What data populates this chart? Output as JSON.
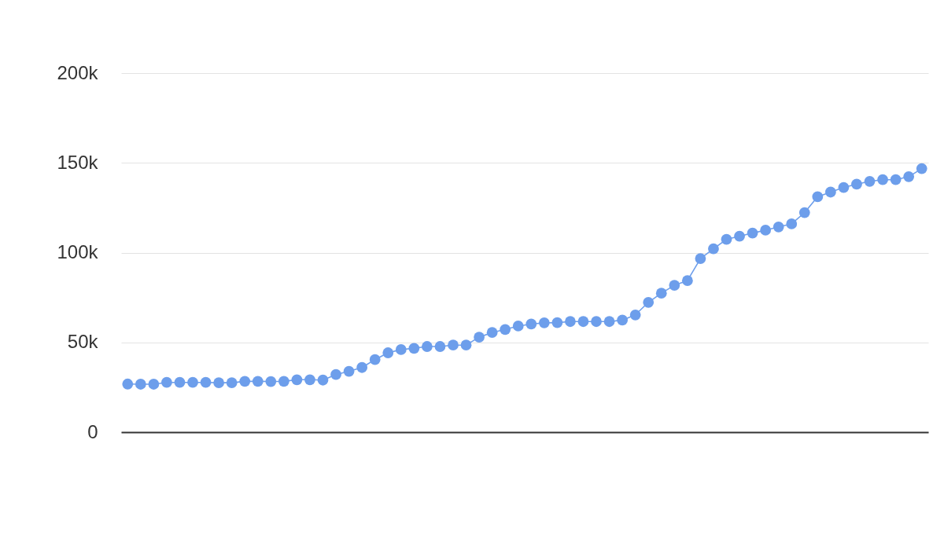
{
  "chart_data": {
    "type": "line",
    "categories": [
      null,
      null,
      null,
      null,
      null,
      null,
      null,
      null,
      null,
      null,
      null,
      null,
      null,
      null,
      null,
      null,
      null,
      null,
      null,
      null,
      null,
      null,
      null,
      null,
      null,
      null,
      null,
      null,
      null,
      null,
      null,
      null,
      null,
      null,
      null,
      null,
      null,
      null,
      null,
      null,
      null,
      null,
      null,
      null,
      null,
      null,
      null,
      null,
      null,
      null,
      null,
      null,
      null,
      null,
      null,
      null,
      null,
      null,
      null,
      null,
      null,
      null
    ],
    "series": [
      {
        "color": "#6d9eeb",
        "values": [
          26800,
          26700,
          26700,
          27700,
          27700,
          27700,
          27700,
          27500,
          27500,
          28300,
          28300,
          28200,
          28300,
          29200,
          29200,
          29000,
          32100,
          33900,
          36000,
          40400,
          44200,
          46000,
          46700,
          47700,
          47700,
          48500,
          48500,
          52900,
          55500,
          57200,
          59100,
          60200,
          60900,
          61000,
          61600,
          61600,
          61600,
          61600,
          62400,
          65300,
          72300,
          77400,
          81800,
          84400,
          96700,
          102100,
          107400,
          109100,
          110900,
          112500,
          114300,
          116000,
          122300,
          131100,
          133700,
          136300,
          138100,
          139700,
          140600,
          140600,
          142300,
          146800
        ]
      }
    ],
    "ylim": [
      0,
      200000
    ],
    "yticks": [
      0,
      {
        "value": 50000,
        "label": "50k"
      },
      {
        "value": 100000,
        "label": "100k"
      },
      {
        "value": 150000,
        "label": "150k"
      },
      {
        "value": 200000,
        "label": "200k"
      }
    ],
    "grid": "y",
    "tick_labels": "y",
    "marker": "circle",
    "line_style": "solid",
    "legend": false
  }
}
